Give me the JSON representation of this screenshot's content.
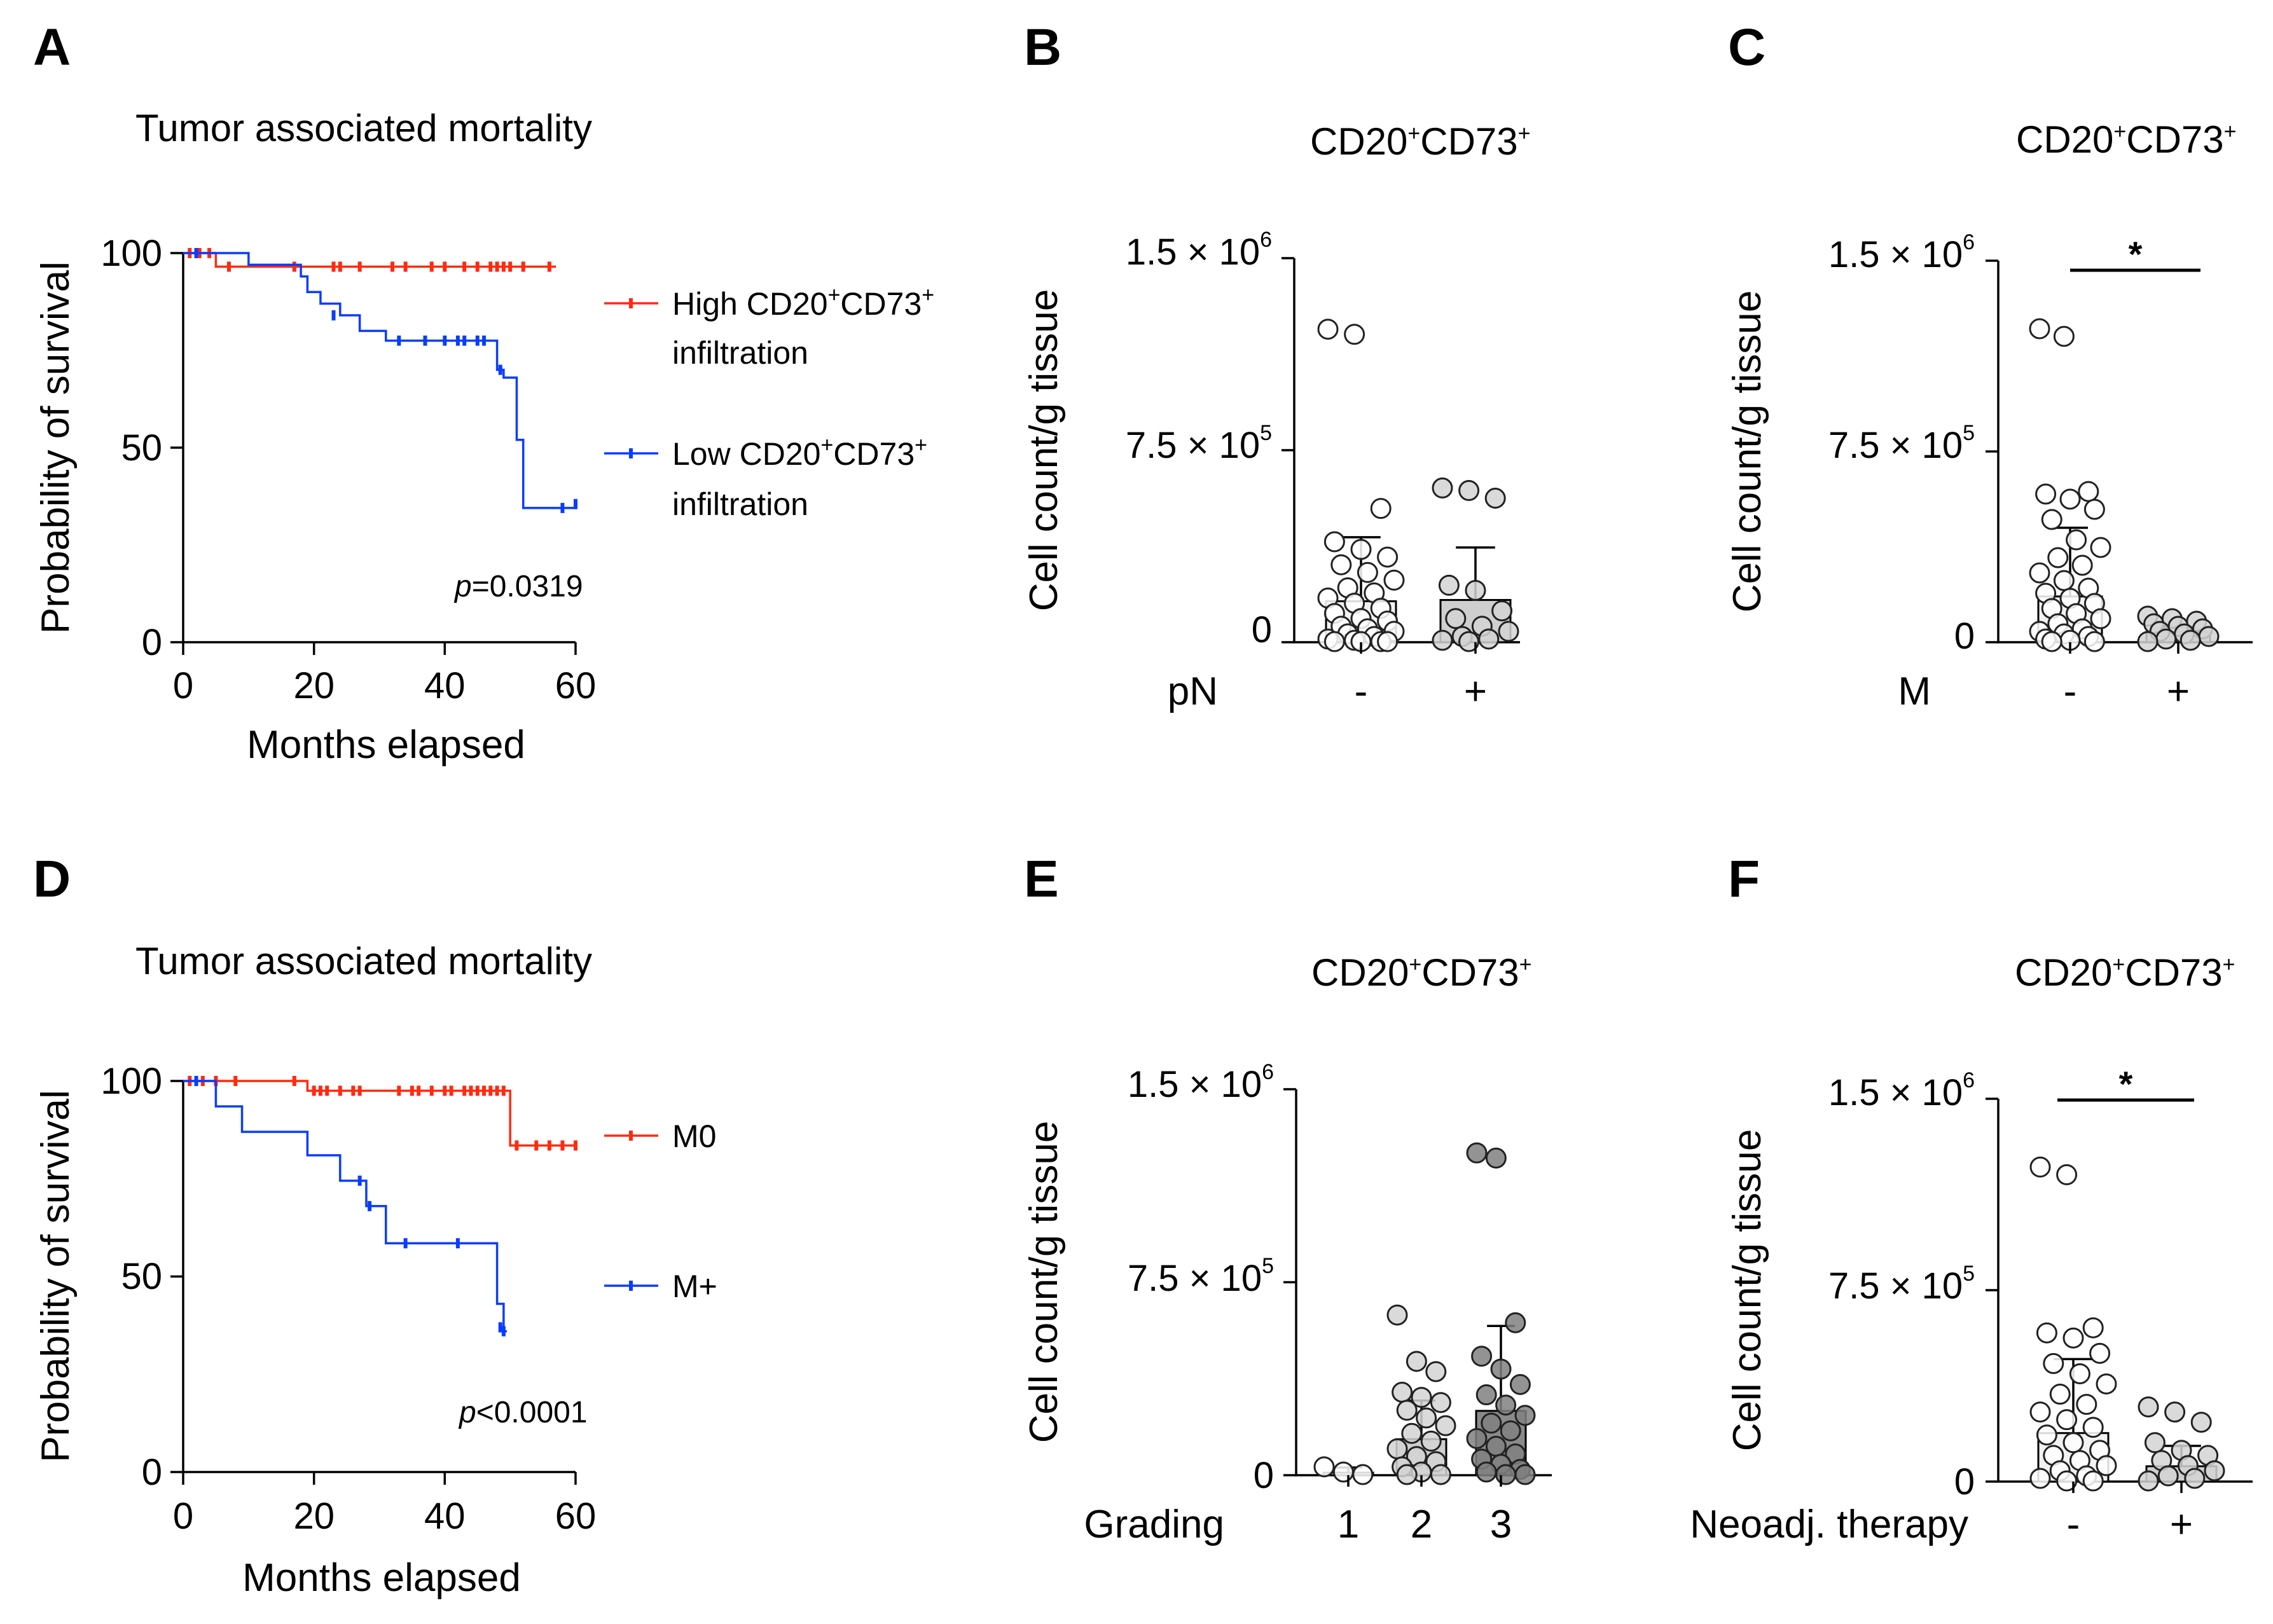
{
  "colors": {
    "high": "#ff2a10",
    "low": "#0a3cff",
    "axis": "#000000",
    "open_fill": "#ffffff",
    "light_fill": "#d3d3d3",
    "dark_fill": "#808080",
    "bar_open": "#f2f2f2",
    "bar_light": "#cfcfcf",
    "bar_dark": "#8a8a8a"
  },
  "panels": {
    "a": {
      "letter": "A",
      "title": "Tumor associated mortality"
    },
    "b": {
      "letter": "B",
      "title_main": "CD20",
      "title_sup1": "+",
      "title_mid": "CD73",
      "title_sup2": "+"
    },
    "c": {
      "letter": "C",
      "title_main": "CD20",
      "title_sup1": "+",
      "title_mid": "CD73",
      "title_sup2": "+"
    },
    "d": {
      "letter": "D",
      "title": "Tumor associated mortality"
    },
    "e": {
      "letter": "E",
      "title_main": "CD20",
      "title_sup1": "+",
      "title_mid": "CD73",
      "title_sup2": "+"
    },
    "f": {
      "letter": "F",
      "title_main": "CD20",
      "title_sup1": "+",
      "title_mid": "CD73",
      "title_sup2": "+"
    }
  },
  "chart_data": [
    {
      "panel": "A",
      "type": "line",
      "subtype": "kaplan-meier",
      "title": "Tumor associated mortality",
      "xlabel": "Months elapsed",
      "ylabel": "Probability of survival",
      "xlim": [
        0,
        60
      ],
      "ylim": [
        0,
        100
      ],
      "xticks": [
        "0",
        "20",
        "40",
        "60"
      ],
      "yticks": [
        "0",
        "50",
        "100"
      ],
      "p_prefix": "p",
      "p_suffix": "=0.0319",
      "series": [
        {
          "name": "High CD20+CD73+ infiltration",
          "legend_line1_main": "High CD20",
          "legend_line1_sup1": "+",
          "legend_line1_mid": "CD73",
          "legend_line1_sup2": "+",
          "legend_line2": "infiltration",
          "color": "#ff2a10",
          "steps": [
            [
              0,
              100
            ],
            [
              5,
              96.5
            ],
            [
              57,
              96.5
            ]
          ],
          "censored": [
            [
              1,
              100
            ],
            [
              2.5,
              100
            ],
            [
              4,
              100
            ],
            [
              7,
              96.5
            ],
            [
              17,
              96.5
            ],
            [
              23,
              96.5
            ],
            [
              24,
              96.5
            ],
            [
              27,
              96.5
            ],
            [
              32,
              96.5
            ],
            [
              34,
              96.5
            ],
            [
              38,
              96.5
            ],
            [
              40,
              96.5
            ],
            [
              43,
              96.5
            ],
            [
              45,
              96.5
            ],
            [
              47,
              96.5
            ],
            [
              48,
              96.5
            ],
            [
              49,
              96.5
            ],
            [
              50,
              96.5
            ],
            [
              52,
              96.5
            ],
            [
              56,
              96.5
            ]
          ]
        },
        {
          "name": "Low CD20+CD73+ infiltration",
          "legend_line1_main": "Low CD20",
          "legend_line1_sup1": "+",
          "legend_line1_mid": "CD73",
          "legend_line1_sup2": "+",
          "legend_line2": "infiltration",
          "color": "#0a3cff",
          "steps": [
            [
              0,
              100
            ],
            [
              10,
              97
            ],
            [
              18,
              94
            ],
            [
              19,
              90
            ],
            [
              21,
              87
            ],
            [
              24,
              84
            ],
            [
              27,
              80
            ],
            [
              31,
              77.5
            ],
            [
              48,
              70
            ],
            [
              49,
              68
            ],
            [
              51,
              52
            ],
            [
              52,
              34.5
            ],
            [
              60,
              34.5
            ]
          ],
          "censored": [
            [
              2,
              100
            ],
            [
              23,
              84
            ],
            [
              33,
              77.5
            ],
            [
              37,
              77.5
            ],
            [
              40,
              77.5
            ],
            [
              42,
              77.5
            ],
            [
              43,
              77.5
            ],
            [
              45,
              77.5
            ],
            [
              46,
              77.5
            ],
            [
              48.5,
              70
            ],
            [
              58,
              34.5
            ],
            [
              60,
              35.5
            ]
          ]
        }
      ]
    },
    {
      "panel": "B",
      "type": "bar",
      "subtype": "bar-with-points",
      "title": "CD20+CD73+",
      "ylabel": "Cell count/g tissue",
      "xlabel": "pN",
      "ylim": [
        0,
        1500000
      ],
      "ytick_values": [
        0,
        750000,
        1500000
      ],
      "ytick_labels": [
        {
          "main": "0",
          "exp": ""
        },
        {
          "main": "7.5 × 10",
          "exp": "5"
        },
        {
          "main": "1.5 × 10",
          "exp": "6"
        }
      ],
      "categories": [
        "-",
        "+"
      ],
      "values": [
        160000,
        165000
      ],
      "sd_upper": [
        410000,
        370000
      ],
      "fills": [
        "open",
        "light"
      ],
      "points": [
        [
          1220000,
          1200000,
          520000,
          390000,
          360000,
          330000,
          300000,
          270000,
          240000,
          210000,
          190000,
          170000,
          150000,
          130000,
          110000,
          90000,
          80000,
          60000,
          50000,
          40000,
          30000,
          20000,
          10000,
          5000,
          0,
          0,
          0,
          0
        ],
        [
          600000,
          590000,
          560000,
          220000,
          200000,
          120000,
          90000,
          60000,
          40000,
          20000,
          10000,
          5000,
          0
        ]
      ]
    },
    {
      "panel": "C",
      "type": "bar",
      "subtype": "bar-with-points",
      "title": "CD20+CD73+",
      "ylabel": "Cell count/g tissue",
      "xlabel": "M",
      "ylim": [
        0,
        1500000
      ],
      "ytick_values": [
        0,
        750000,
        1500000
      ],
      "ytick_labels": [
        {
          "main": "0",
          "exp": ""
        },
        {
          "main": "7.5 × 10",
          "exp": "5"
        },
        {
          "main": "1.5 × 10",
          "exp": "6"
        }
      ],
      "categories": [
        "-",
        "+"
      ],
      "values": [
        180000,
        40000
      ],
      "sd_upper": [
        450000,
        60000
      ],
      "fills": [
        "open",
        "light"
      ],
      "significance": "*",
      "points": [
        [
          1230000,
          1200000,
          590000,
          580000,
          560000,
          520000,
          480000,
          400000,
          370000,
          330000,
          300000,
          270000,
          240000,
          210000,
          190000,
          170000,
          150000,
          130000,
          110000,
          90000,
          70000,
          50000,
          40000,
          30000,
          20000,
          10000,
          5000,
          0,
          0
        ],
        [
          100000,
          90000,
          80000,
          70000,
          60000,
          50000,
          40000,
          30000,
          20000,
          10000,
          5000,
          0
        ]
      ]
    },
    {
      "panel": "D",
      "type": "line",
      "subtype": "kaplan-meier",
      "title": "Tumor associated mortality",
      "xlabel": "Months elapsed",
      "ylabel": "Probability of survival",
      "xlim": [
        0,
        60
      ],
      "ylim": [
        0,
        100
      ],
      "xticks": [
        "0",
        "20",
        "40",
        "60"
      ],
      "yticks": [
        "0",
        "50",
        "100"
      ],
      "p_prefix": "p",
      "p_suffix": "<0.0001",
      "series": [
        {
          "name": "M0",
          "color": "#ff2a10",
          "steps": [
            [
              0,
              100
            ],
            [
              19,
              97.5
            ],
            [
              50,
              83.5
            ],
            [
              60,
              83.5
            ]
          ],
          "censored": [
            [
              1,
              100
            ],
            [
              3,
              100
            ],
            [
              5,
              100
            ],
            [
              8,
              100
            ],
            [
              17,
              100
            ],
            [
              20,
              97.5
            ],
            [
              21,
              97.5
            ],
            [
              22,
              97.5
            ],
            [
              24,
              97.5
            ],
            [
              26,
              97.5
            ],
            [
              27,
              97.5
            ],
            [
              33,
              97.5
            ],
            [
              35,
              97.5
            ],
            [
              36,
              97.5
            ],
            [
              38,
              97.5
            ],
            [
              40,
              97.5
            ],
            [
              41,
              97.5
            ],
            [
              43,
              97.5
            ],
            [
              44,
              97.5
            ],
            [
              45,
              97.5
            ],
            [
              46,
              97.5
            ],
            [
              47,
              97.5
            ],
            [
              48,
              97.5
            ],
            [
              49,
              97.5
            ],
            [
              51,
              83.5
            ],
            [
              54,
              83.5
            ],
            [
              56,
              83.5
            ],
            [
              58,
              83.5
            ],
            [
              60,
              83.5
            ]
          ]
        },
        {
          "name": "M+",
          "color": "#0a3cff",
          "steps": [
            [
              0,
              100
            ],
            [
              5,
              93.5
            ],
            [
              9,
              87
            ],
            [
              19,
              81
            ],
            [
              24,
              74.5
            ],
            [
              28,
              68
            ],
            [
              31,
              58.5
            ],
            [
              48,
              43
            ],
            [
              49,
              36
            ],
            [
              49.5,
              36
            ]
          ],
          "censored": [
            [
              2,
              100
            ],
            [
              27,
              74.5
            ],
            [
              28.5,
              68
            ],
            [
              34,
              58.5
            ],
            [
              42,
              58.5
            ],
            [
              48.5,
              37
            ],
            [
              49,
              36
            ]
          ]
        }
      ]
    },
    {
      "panel": "E",
      "type": "bar",
      "subtype": "bar-with-points",
      "title": "CD20+CD73+",
      "ylabel": "Cell count/g tissue",
      "xlabel": "Grading",
      "ylim": [
        0,
        1500000
      ],
      "ytick_values": [
        0,
        750000,
        1500000
      ],
      "ytick_labels": [
        {
          "main": "0",
          "exp": ""
        },
        {
          "main": "7.5 × 10",
          "exp": "5"
        },
        {
          "main": "1.5 × 10",
          "exp": "6"
        }
      ],
      "categories": [
        "1",
        "2",
        "3"
      ],
      "values": [
        10000,
        140000,
        250000
      ],
      "sd_upper": [
        30000,
        290000,
        580000
      ],
      "fills": [
        "open",
        "light",
        "dark"
      ],
      "points": [
        [
          30000,
          10000,
          0
        ],
        [
          620000,
          440000,
          400000,
          320000,
          300000,
          280000,
          250000,
          220000,
          190000,
          160000,
          130000,
          100000,
          70000,
          50000,
          30000,
          10000,
          0,
          0
        ],
        [
          1250000,
          1230000,
          590000,
          460000,
          410000,
          350000,
          310000,
          270000,
          230000,
          200000,
          170000,
          140000,
          110000,
          80000,
          60000,
          40000,
          20000,
          10000,
          0,
          0
        ]
      ]
    },
    {
      "panel": "F",
      "type": "bar",
      "subtype": "bar-with-points",
      "title": "CD20+CD73+",
      "ylabel": "Cell count/g tissue",
      "xlabel": "Neoadj. therapy",
      "ylim": [
        0,
        1500000
      ],
      "ytick_values": [
        0,
        750000,
        1500000
      ],
      "ytick_labels": [
        {
          "main": "0",
          "exp": ""
        },
        {
          "main": "7.5 × 10",
          "exp": "5"
        },
        {
          "main": "1.5 × 10",
          "exp": "6"
        }
      ],
      "categories": [
        "-",
        "+"
      ],
      "values": [
        190000,
        60000
      ],
      "sd_upper": [
        480000,
        140000
      ],
      "fills": [
        "open",
        "light"
      ],
      "significance": "*",
      "points": [
        [
          1230000,
          1200000,
          600000,
          580000,
          560000,
          500000,
          460000,
          420000,
          380000,
          340000,
          300000,
          270000,
          240000,
          210000,
          180000,
          150000,
          120000,
          100000,
          80000,
          60000,
          40000,
          20000,
          10000,
          0,
          0
        ],
        [
          290000,
          270000,
          230000,
          150000,
          120000,
          100000,
          80000,
          60000,
          40000,
          20000,
          10000,
          0
        ]
      ]
    }
  ]
}
